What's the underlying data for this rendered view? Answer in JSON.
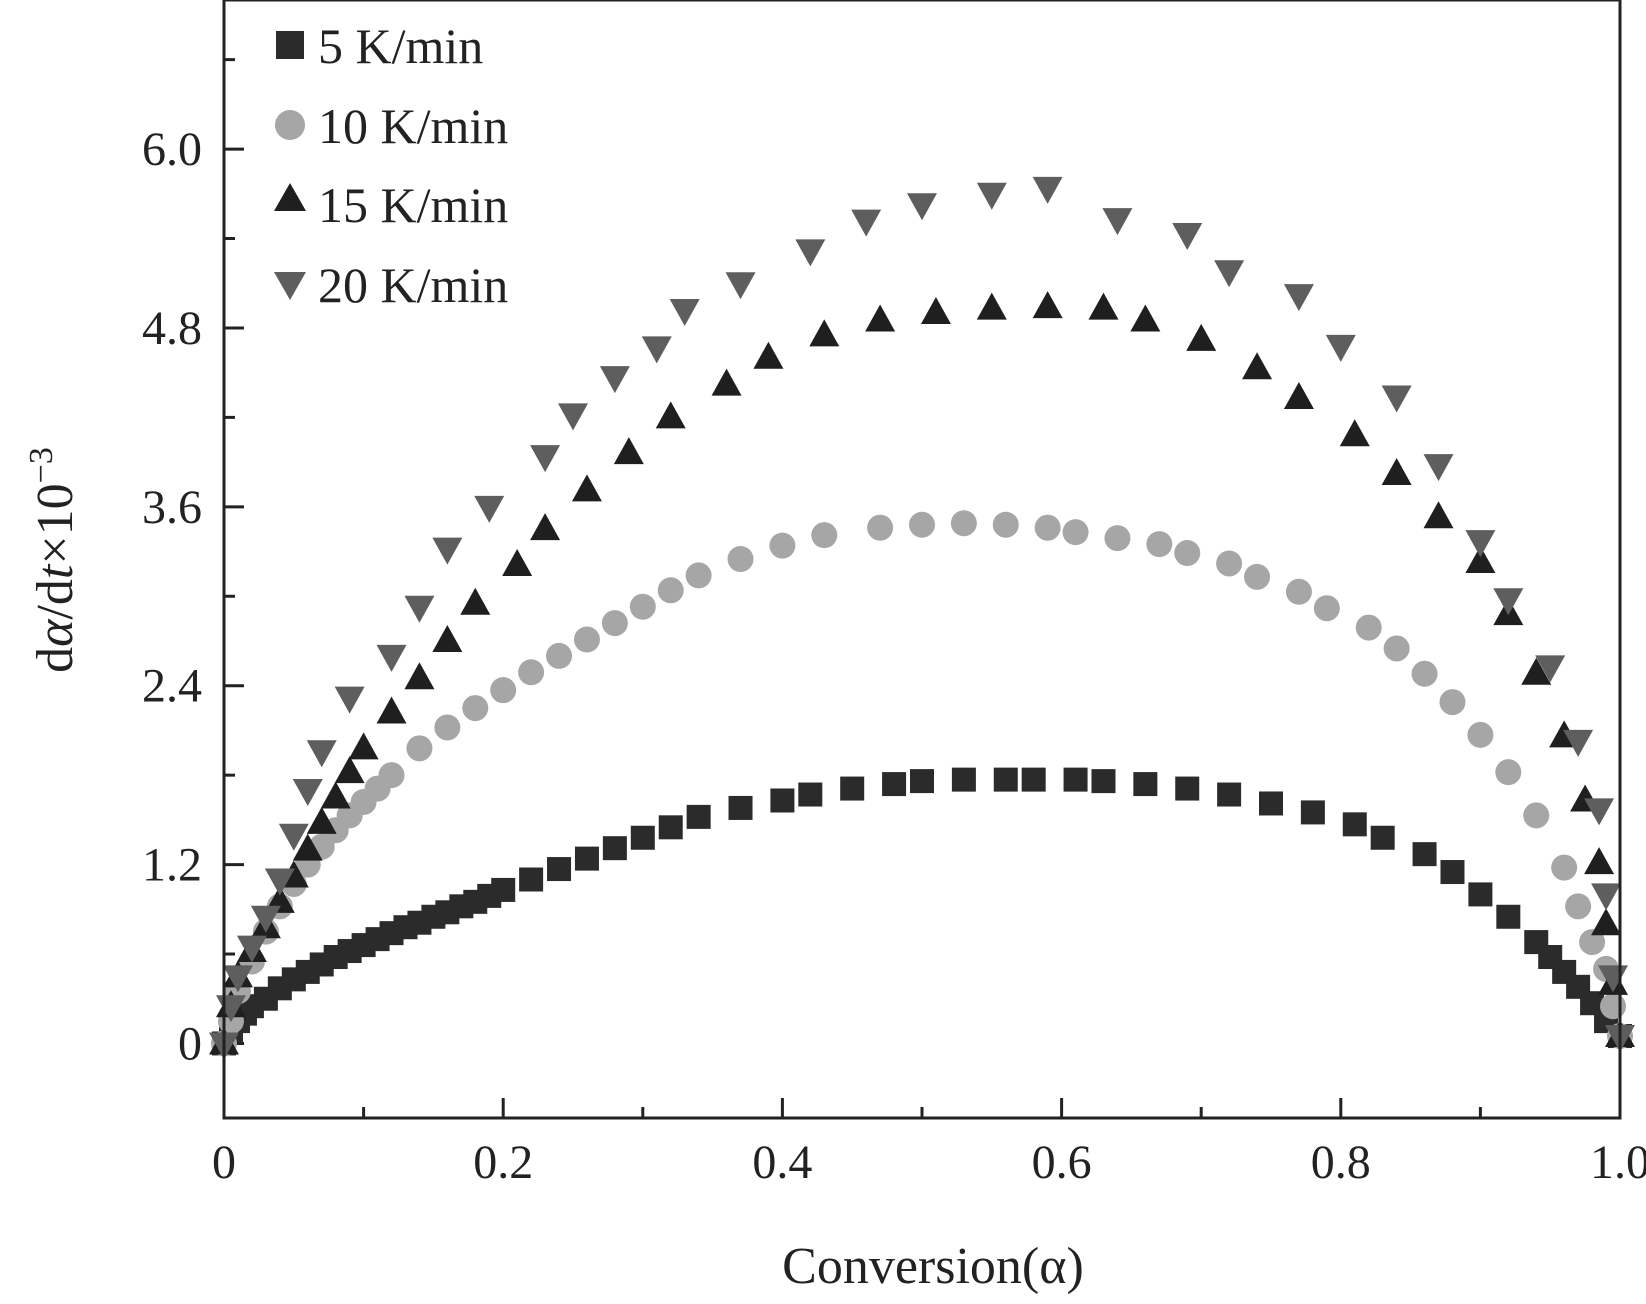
{
  "chart_data": {
    "type": "scatter",
    "title": "",
    "xlabel": "Conversion(α)",
    "ylabel_parts": {
      "d1": "d",
      "alpha": "α",
      "slash": "/d",
      "t": "t",
      "times": "×10",
      "exp": "−3"
    },
    "xlim": [
      0,
      1.0
    ],
    "ylim": [
      -0.5,
      7.0
    ],
    "x_ticks": [
      0,
      0.2,
      0.4,
      0.6,
      0.8,
      1.0
    ],
    "x_tick_labels": [
      "0",
      "0.2",
      "0.4",
      "0.6",
      "0.8",
      "1.0"
    ],
    "y_ticks": [
      0,
      1.2,
      2.4,
      3.6,
      4.8,
      6.0
    ],
    "y_tick_labels": [
      "0",
      "1.2",
      "2.4",
      "3.6",
      "4.8",
      "6.0"
    ],
    "grid": false,
    "legend_position": "top-left",
    "series": [
      {
        "name": "5 K/min",
        "marker": "square",
        "color": "#2b2b2b",
        "x": [
          0,
          0.005,
          0.01,
          0.015,
          0.02,
          0.03,
          0.04,
          0.05,
          0.06,
          0.07,
          0.08,
          0.09,
          0.1,
          0.11,
          0.12,
          0.13,
          0.14,
          0.15,
          0.16,
          0.17,
          0.18,
          0.19,
          0.2,
          0.22,
          0.24,
          0.26,
          0.28,
          0.3,
          0.32,
          0.34,
          0.37,
          0.4,
          0.42,
          0.45,
          0.48,
          0.5,
          0.53,
          0.56,
          0.58,
          0.61,
          0.63,
          0.66,
          0.69,
          0.72,
          0.75,
          0.78,
          0.81,
          0.83,
          0.86,
          0.88,
          0.9,
          0.92,
          0.94,
          0.95,
          0.96,
          0.97,
          0.98,
          0.99,
          1.0
        ],
        "y": [
          0,
          0.08,
          0.15,
          0.2,
          0.25,
          0.3,
          0.37,
          0.43,
          0.48,
          0.53,
          0.58,
          0.62,
          0.66,
          0.7,
          0.74,
          0.78,
          0.81,
          0.85,
          0.88,
          0.92,
          0.95,
          0.99,
          1.03,
          1.1,
          1.17,
          1.24,
          1.31,
          1.38,
          1.45,
          1.52,
          1.58,
          1.63,
          1.67,
          1.71,
          1.74,
          1.76,
          1.77,
          1.77,
          1.77,
          1.77,
          1.76,
          1.74,
          1.71,
          1.67,
          1.61,
          1.55,
          1.47,
          1.38,
          1.27,
          1.15,
          1.0,
          0.85,
          0.68,
          0.58,
          0.48,
          0.38,
          0.27,
          0.15,
          0.05
        ]
      },
      {
        "name": "10 K/min",
        "marker": "circle",
        "color": "#a6a6a6",
        "x": [
          0,
          0.005,
          0.01,
          0.02,
          0.03,
          0.04,
          0.05,
          0.06,
          0.07,
          0.08,
          0.09,
          0.1,
          0.11,
          0.12,
          0.14,
          0.16,
          0.18,
          0.2,
          0.22,
          0.24,
          0.26,
          0.28,
          0.3,
          0.32,
          0.34,
          0.37,
          0.4,
          0.43,
          0.47,
          0.5,
          0.53,
          0.56,
          0.59,
          0.61,
          0.64,
          0.67,
          0.69,
          0.72,
          0.74,
          0.77,
          0.79,
          0.82,
          0.84,
          0.86,
          0.88,
          0.9,
          0.92,
          0.94,
          0.96,
          0.97,
          0.98,
          0.99,
          0.995,
          1.0
        ],
        "y": [
          0,
          0.15,
          0.35,
          0.55,
          0.75,
          0.92,
          1.07,
          1.2,
          1.32,
          1.43,
          1.53,
          1.62,
          1.71,
          1.8,
          1.98,
          2.12,
          2.25,
          2.37,
          2.49,
          2.6,
          2.71,
          2.82,
          2.93,
          3.04,
          3.14,
          3.25,
          3.34,
          3.41,
          3.46,
          3.48,
          3.49,
          3.48,
          3.46,
          3.43,
          3.39,
          3.35,
          3.29,
          3.22,
          3.13,
          3.03,
          2.92,
          2.79,
          2.65,
          2.48,
          2.29,
          2.07,
          1.82,
          1.53,
          1.18,
          0.92,
          0.68,
          0.5,
          0.25,
          0.05
        ]
      },
      {
        "name": "15 K/min",
        "marker": "triangle-up",
        "color": "#1f1f1f",
        "x": [
          0,
          0.005,
          0.01,
          0.02,
          0.03,
          0.04,
          0.05,
          0.06,
          0.07,
          0.08,
          0.09,
          0.1,
          0.12,
          0.14,
          0.16,
          0.18,
          0.21,
          0.23,
          0.26,
          0.29,
          0.32,
          0.36,
          0.39,
          0.43,
          0.47,
          0.51,
          0.55,
          0.59,
          0.63,
          0.66,
          0.7,
          0.74,
          0.77,
          0.81,
          0.84,
          0.87,
          0.9,
          0.92,
          0.94,
          0.96,
          0.975,
          0.985,
          0.99,
          0.995,
          1.0
        ],
        "y": [
          0,
          0.25,
          0.45,
          0.62,
          0.78,
          0.95,
          1.12,
          1.3,
          1.48,
          1.65,
          1.82,
          1.98,
          2.22,
          2.45,
          2.7,
          2.95,
          3.21,
          3.45,
          3.71,
          3.96,
          4.2,
          4.42,
          4.6,
          4.75,
          4.85,
          4.9,
          4.93,
          4.94,
          4.93,
          4.85,
          4.72,
          4.53,
          4.33,
          4.08,
          3.82,
          3.53,
          3.23,
          2.88,
          2.48,
          2.06,
          1.63,
          1.21,
          0.8,
          0.4,
          0.05
        ]
      },
      {
        "name": "20 K/min",
        "marker": "triangle-down",
        "color": "#5e5e5e",
        "x": [
          0,
          0.005,
          0.01,
          0.02,
          0.03,
          0.04,
          0.05,
          0.06,
          0.07,
          0.09,
          0.12,
          0.14,
          0.16,
          0.19,
          0.23,
          0.25,
          0.28,
          0.31,
          0.33,
          0.37,
          0.42,
          0.46,
          0.5,
          0.55,
          0.59,
          0.64,
          0.69,
          0.72,
          0.77,
          0.8,
          0.84,
          0.87,
          0.9,
          0.92,
          0.95,
          0.97,
          0.985,
          0.99,
          0.995,
          1.0
        ],
        "y": [
          0,
          0.25,
          0.45,
          0.65,
          0.85,
          1.1,
          1.4,
          1.7,
          1.96,
          2.32,
          2.6,
          2.93,
          3.32,
          3.6,
          3.94,
          4.22,
          4.47,
          4.67,
          4.92,
          5.1,
          5.32,
          5.52,
          5.63,
          5.7,
          5.74,
          5.53,
          5.43,
          5.18,
          5.02,
          4.68,
          4.34,
          3.88,
          3.37,
          2.98,
          2.53,
          2.03,
          1.57,
          1.0,
          0.45,
          0.05
        ]
      }
    ]
  }
}
